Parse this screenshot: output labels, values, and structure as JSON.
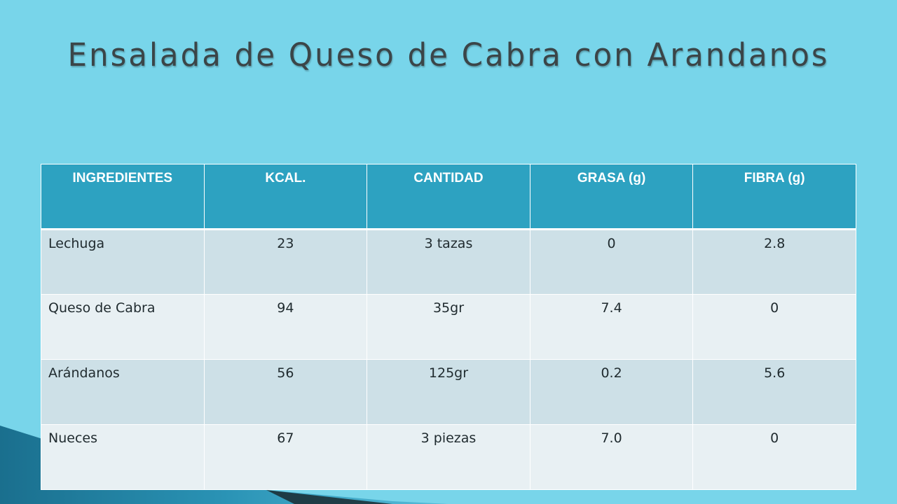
{
  "title": "Ensalada de Queso de Cabra con Arandanos",
  "colors": {
    "background": "#78d5ea",
    "header": "#2da2c1",
    "row_odd": "#cde0e7",
    "row_even": "#e8f0f3",
    "title_text": "#3b4548"
  },
  "table": {
    "headers": [
      "INGREDIENTES",
      "KCAL.",
      "CANTIDAD",
      "GRASA (g)",
      "FIBRA (g)"
    ],
    "rows": [
      [
        "Lechuga",
        "23",
        "3 tazas",
        "0",
        "2.8"
      ],
      [
        "Queso de Cabra",
        "94",
        "35gr",
        "7.4",
        "0"
      ],
      [
        "Arándanos",
        "56",
        "125gr",
        "0.2",
        "5.6"
      ],
      [
        "Nueces",
        "67",
        "3 piezas",
        "7.0",
        "0"
      ]
    ]
  }
}
